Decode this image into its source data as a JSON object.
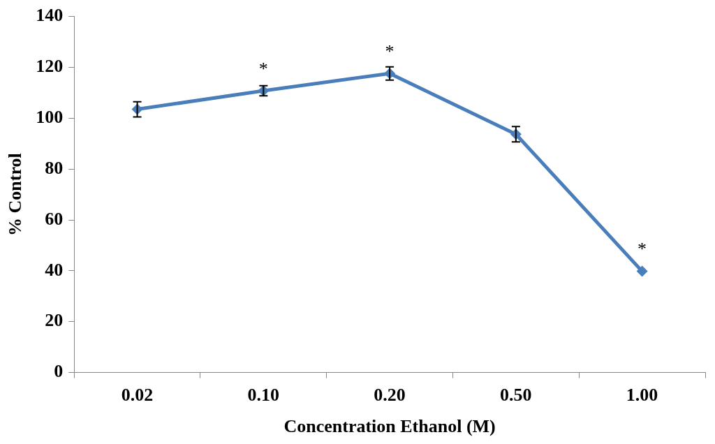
{
  "chart_data": {
    "type": "line",
    "xlabel": "Concentration Ethanol (M)",
    "ylabel": "% Control",
    "categories": [
      "0.02",
      "0.10",
      "0.20",
      "0.50",
      "1.00"
    ],
    "series": [
      {
        "color": "#4a7ebb",
        "values": [
          103.5,
          110.8,
          117.6,
          93.7,
          39.8
        ],
        "errors": [
          3,
          2,
          2.6,
          3,
          null
        ]
      }
    ],
    "ylim": [
      0,
      140
    ],
    "yticks": [
      0,
      20,
      40,
      60,
      80,
      100,
      120,
      140
    ],
    "grid": false,
    "legend": false,
    "marker": "diamond",
    "line_style": "solid",
    "annotations": [
      {
        "text": "*",
        "x": "0.10",
        "y": 110.8
      },
      {
        "text": "*",
        "x": "0.20",
        "y": 117.6
      },
      {
        "text": "*",
        "x": "1.00",
        "y": 39.8
      }
    ]
  }
}
